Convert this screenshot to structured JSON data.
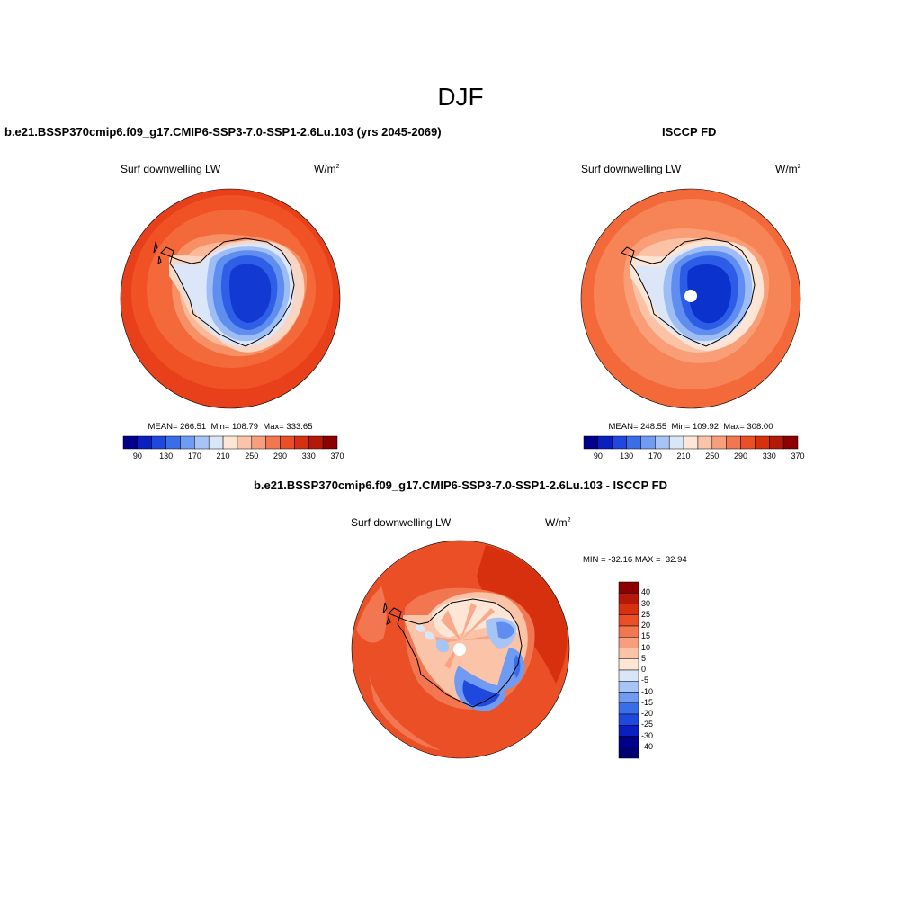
{
  "figure": {
    "season": "DJF",
    "left_panel": {
      "title": "b.e21.BSSP370cmip6.f09_g17.CMIP6-SSP3-7.0-SSP1-2.6Lu.103 (yrs 2045-2069)",
      "variable": "Surf downwelling LW",
      "units_base": "W/m",
      "units_exp": "2",
      "stats": "MEAN= 266.51  Min= 108.79  Max= 333.65"
    },
    "right_panel": {
      "title": "ISCCP FD",
      "variable": "Surf downwelling LW",
      "units_base": "W/m",
      "units_exp": "2",
      "stats": "MEAN= 248.55  Min= 109.92  Max= 308.00"
    },
    "diff_panel": {
      "title": "b.e21.BSSP370cmip6.f09_g17.CMIP6-SSP3-7.0-SSP1-2.6Lu.103 - ISCCP FD",
      "variable": "Surf downwelling LW",
      "units_base": "W/m",
      "units_exp": "2",
      "minmax": "MIN = -32.16 MAX =  32.94"
    },
    "abs_colorbar": {
      "colors": [
        "#00008b",
        "#0a1fc0",
        "#1f48dd",
        "#3a6ee8",
        "#6f9bf2",
        "#a6c4f5",
        "#d9e6f8",
        "#fde6d6",
        "#fbc4a8",
        "#f79f7d",
        "#f2764f",
        "#ea4f25",
        "#d6300f",
        "#b31908",
        "#8b0000"
      ],
      "tick_labels": [
        "90",
        "130",
        "170",
        "210",
        "250",
        "290",
        "330",
        "370"
      ]
    },
    "diff_colorbar": {
      "colors": [
        "#8b0000",
        "#b31908",
        "#d6300f",
        "#ea4f25",
        "#f2764f",
        "#f79f7d",
        "#fbc4a8",
        "#fde6d6",
        "#d9e6f8",
        "#a6c4f5",
        "#6f9bf2",
        "#3a6ee8",
        "#1f48dd",
        "#0a1fc0",
        "#00008b",
        "#000070"
      ],
      "tick_labels": [
        "40",
        "30",
        "25",
        "20",
        "15",
        "10",
        "5",
        "0",
        "-5",
        "-10",
        "-15",
        "-20",
        "-25",
        "-30",
        "-40"
      ]
    }
  }
}
